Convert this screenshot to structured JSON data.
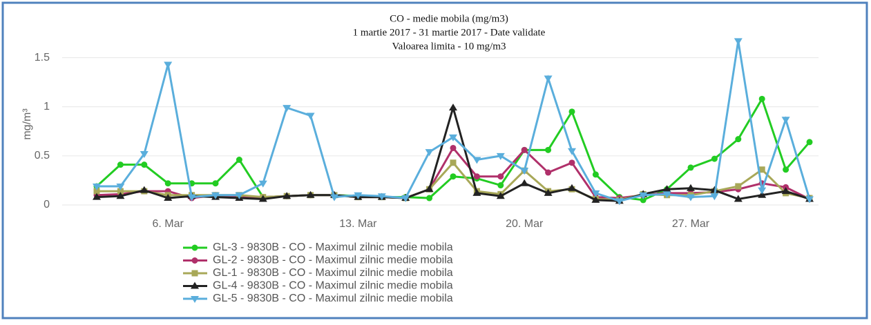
{
  "chart_data": {
    "type": "line",
    "title": "CO - medie mobila (mg/m3)",
    "subtitle": "1 martie 2017 - 31 martie 2017 - Date validate",
    "annotation": "Valoarea limita - 10 mg/m3",
    "y_label": "mg/m³",
    "categories": [
      null,
      null,
      null,
      "6. Mar",
      null,
      null,
      null,
      null,
      null,
      null,
      null,
      "13. Mar",
      null,
      null,
      null,
      null,
      null,
      null,
      "20. Mar",
      null,
      null,
      null,
      null,
      null,
      null,
      "27. Mar",
      null,
      null,
      null,
      null,
      null
    ],
    "ylim": [
      0,
      1.75
    ],
    "yticks": [
      0,
      0.5,
      1,
      1.5
    ],
    "grid": true,
    "series": [
      {
        "name": "GL-3 - 9830B - CO - Maximul zilnic medie mobila",
        "color": "#22cc22",
        "marker": "circle",
        "values": [
          0.19,
          0.41,
          0.41,
          0.22,
          0.22,
          0.22,
          0.46,
          0.08,
          0.09,
          0.1,
          0.1,
          0.09,
          0.08,
          0.08,
          0.07,
          0.29,
          0.27,
          0.2,
          0.56,
          0.56,
          0.95,
          0.31,
          0.08,
          0.05,
          0.16,
          0.38,
          0.47,
          0.67,
          1.08,
          0.36,
          0.64
        ]
      },
      {
        "name": "GL-2 - 9830B - CO - Maximul zilnic medie mobila",
        "color": "#b0306a",
        "marker": "circle",
        "values": [
          0.1,
          0.11,
          0.14,
          0.14,
          0.07,
          0.1,
          0.08,
          0.08,
          0.09,
          0.1,
          0.1,
          0.08,
          0.08,
          0.07,
          0.16,
          0.58,
          0.29,
          0.29,
          0.56,
          0.33,
          0.43,
          0.08,
          0.07,
          0.1,
          0.12,
          0.12,
          0.13,
          0.16,
          0.22,
          0.18,
          0.06
        ]
      },
      {
        "name": "GL-1 - 9830B - CO - Maximul zilnic medie mobila",
        "color": "#a8a858",
        "marker": "square",
        "values": [
          0.14,
          0.14,
          0.14,
          0.1,
          0.1,
          0.1,
          0.1,
          0.08,
          0.09,
          0.1,
          0.1,
          0.08,
          0.08,
          0.07,
          0.16,
          0.43,
          0.14,
          0.11,
          0.35,
          0.14,
          0.16,
          0.06,
          0.05,
          0.11,
          0.1,
          0.1,
          0.14,
          0.19,
          0.36,
          0.12,
          0.07
        ]
      },
      {
        "name": "GL-4 - 9830B - CO - Maximul zilnic medie mobila",
        "color": "#222222",
        "marker": "triangle",
        "values": [
          0.08,
          0.09,
          0.15,
          0.07,
          0.09,
          0.08,
          0.07,
          0.06,
          0.09,
          0.1,
          0.1,
          0.08,
          0.08,
          0.07,
          0.16,
          0.99,
          0.12,
          0.09,
          0.22,
          0.12,
          0.17,
          0.05,
          0.04,
          0.11,
          0.16,
          0.17,
          0.15,
          0.06,
          0.1,
          0.14,
          0.06
        ]
      },
      {
        "name": "GL-5 - 9830B - CO - Maximul zilnic medie mobila",
        "color": "#5aaedc",
        "marker": "triangle-down",
        "values": [
          0.19,
          0.19,
          0.52,
          1.43,
          0.08,
          0.1,
          0.1,
          0.22,
          0.99,
          0.91,
          0.08,
          0.1,
          0.09,
          0.07,
          0.54,
          0.69,
          0.46,
          0.5,
          0.35,
          1.29,
          0.55,
          0.12,
          0.04,
          0.1,
          0.11,
          0.08,
          0.09,
          1.67,
          0.15,
          0.87,
          0.06
        ]
      }
    ]
  }
}
